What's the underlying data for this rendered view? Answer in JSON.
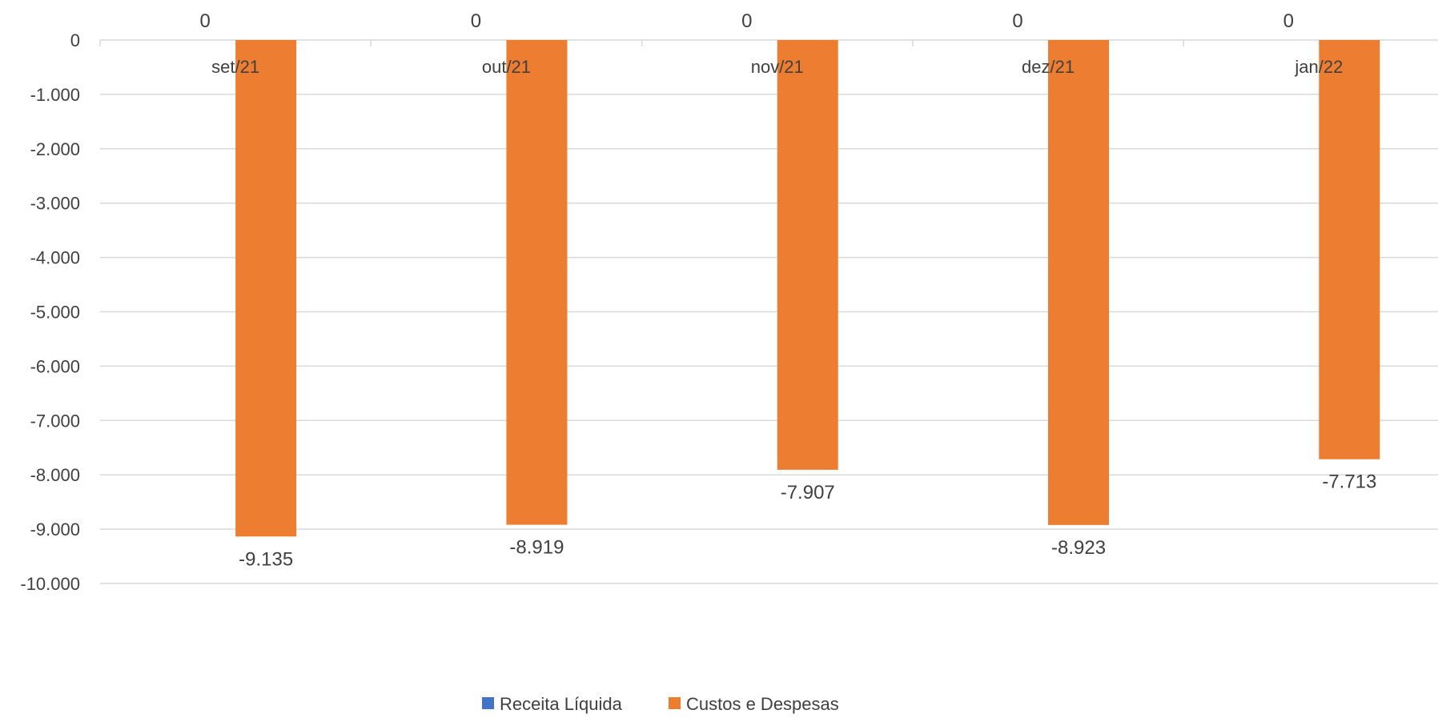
{
  "chart_data": {
    "type": "bar",
    "categories": [
      "set/21",
      "out/21",
      "nov/21",
      "dez/21",
      "jan/22"
    ],
    "series": [
      {
        "name": "Receita Líquida",
        "values": [
          0,
          0,
          0,
          0,
          0
        ],
        "color": "#4472C4"
      },
      {
        "name": "Custos e Despesas",
        "values": [
          -9135,
          -8919,
          -7907,
          -8923,
          -7713
        ],
        "color": "#ED7D31"
      }
    ],
    "data_labels": {
      "Receita Líquida": [
        "0",
        "0",
        "0",
        "0",
        "0"
      ],
      "Custos e Despesas": [
        "-9.135",
        "-8.919",
        "-7.907",
        "-8.923",
        "-7.713"
      ]
    },
    "ylim": [
      -10000,
      0
    ],
    "y_ticks": [
      0,
      -1000,
      -2000,
      -3000,
      -4000,
      -5000,
      -6000,
      -7000,
      -8000,
      -9000,
      -10000
    ],
    "y_tick_labels": [
      "0",
      "-1.000",
      "-2.000",
      "-3.000",
      "-4.000",
      "-5.000",
      "-6.000",
      "-7.000",
      "-8.000",
      "-9.000",
      "-10.000"
    ],
    "grid": true,
    "legend_position": "bottom",
    "title": "",
    "xlabel": "",
    "ylabel": "",
    "colors": {
      "gridline": "#D9D9D9",
      "text": "#404040"
    }
  }
}
